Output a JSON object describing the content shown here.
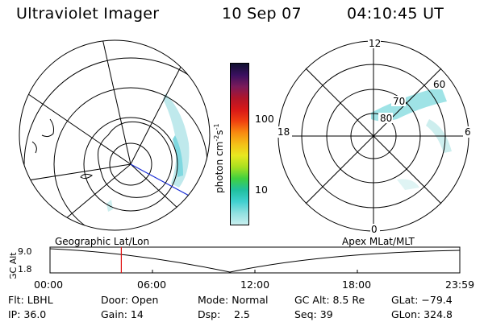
{
  "header": {
    "title": "Ultraviolet Imager",
    "date": "10 Sep 07",
    "time": "04:10:45 UT"
  },
  "colorbar": {
    "label_main": "photon cm",
    "label_sup1": "-2",
    "label_mid": "s",
    "label_sup2": "-1",
    "ticks": [
      "100",
      "10"
    ],
    "scale": "log",
    "colors": [
      "#101030",
      "#3a1060",
      "#7a1a5a",
      "#b0152a",
      "#d81818",
      "#f04010",
      "#f88a10",
      "#f4c018",
      "#e8e820",
      "#a8e020",
      "#40d040",
      "#20c0a0",
      "#40d0d0",
      "#90e0e0",
      "#c8eeee"
    ]
  },
  "polar": {
    "lat_labels": [
      "80",
      "70",
      "60"
    ],
    "mlt_labels": [
      "12",
      "18",
      "6",
      "0"
    ]
  },
  "timeline": {
    "left_label": "Geographic Lat/Lon",
    "right_label": "Apex MLat/MLT",
    "axis_title": "GC Alt",
    "y_top": "9.0",
    "y_bottom": "1.8",
    "x_ticks": [
      "00:00",
      "06:00",
      "12:00",
      "18:00",
      "23:59"
    ],
    "current_time_fraction": 0.174
  },
  "footer": {
    "filter": "Flt: LBHL",
    "door": "Door: Open",
    "mode": "Mode: Normal",
    "gc_alt": "GC Alt: 8.5 Re",
    "glat": "GLat: −79.4",
    "ip": "IP: 36.0",
    "gain": "Gain: 14",
    "dsp_label": "Dsp:",
    "dsp_value": "2.5",
    "seq": "Seq: 39",
    "glon": "GLon: 324.8"
  }
}
